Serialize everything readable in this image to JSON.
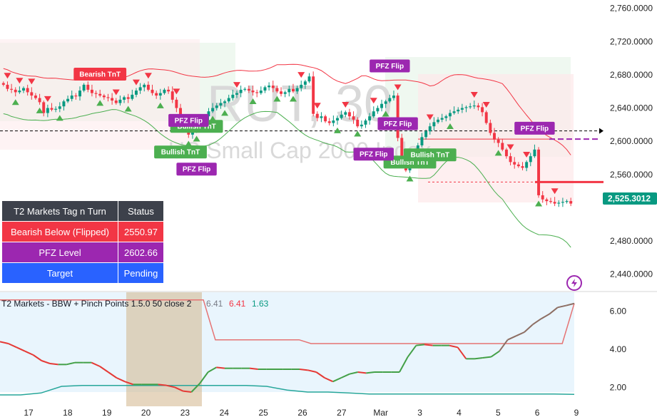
{
  "watermark": {
    "symbol": "RUT, 30",
    "name": "US Small Cap 2000 Index"
  },
  "price_axis": {
    "ticks": [
      "2,760.0000",
      "2,720.0000",
      "2,680.0000",
      "2,640.0000",
      "2,600.0000",
      "2,560.0000",
      "2,480.0000",
      "2,440.0000"
    ],
    "last_price": "2,525.3012",
    "last_price_color": "#089981"
  },
  "indicator_axis": {
    "ticks": [
      "6.00",
      "4.00",
      "2.00"
    ]
  },
  "time_axis": {
    "ticks": [
      "17",
      "18",
      "19",
      "20",
      "23",
      "24",
      "25",
      "26",
      "27",
      "Mar",
      "3",
      "4",
      "5",
      "6",
      "9"
    ]
  },
  "indicator": {
    "title": "T2 Markets - BBW + Pinch Points 1.5.0 50 close 2",
    "v1": "6.41",
    "v2": "6.41",
    "v3": "1.63"
  },
  "status_table": {
    "header": [
      "T2 Markets Tag n Turn",
      "Status"
    ],
    "rows": [
      {
        "label": "Bearish Below (Flipped)",
        "value": "2550.97",
        "color": "#f23645"
      },
      {
        "label": "PFZ Level",
        "value": "2602.66",
        "color": "#9c27b0"
      },
      {
        "label": "Target",
        "value": "Pending",
        "color": "#2962ff"
      }
    ]
  },
  "signals": {
    "bearish_tnt": "Bearish TnT",
    "bullish_tnt": "Bullish TnT",
    "pfz_flip": "PFZ Flip"
  },
  "colors": {
    "bull": "#089981",
    "bear": "#f23645",
    "band": "#f23645",
    "band_lower": "#4caf50",
    "pfz": "#9c27b0",
    "bull_label": "#4caf50",
    "bear_label": "#f23645",
    "ind_fill": "#e3f2fd",
    "pinch": "#d1b58a"
  },
  "chart_data": [
    {
      "type": "candlestick",
      "title": "RUT, 30 — US Small Cap 2000 Index",
      "ylim": [
        2420,
        2770
      ],
      "x_labels": [
        "17",
        "18",
        "19",
        "20",
        "23",
        "24",
        "25",
        "26",
        "27",
        "Mar",
        "3",
        "4",
        "5",
        "6",
        "9"
      ],
      "closes": [
        2668,
        2663,
        2662,
        2659,
        2661,
        2664,
        2659,
        2655,
        2652,
        2647,
        2634,
        2640,
        2638,
        2639,
        2642,
        2648,
        2651,
        2655,
        2654,
        2661,
        2668,
        2662,
        2658,
        2657,
        2655,
        2653,
        2652,
        2649,
        2646,
        2650,
        2653,
        2651,
        2656,
        2661,
        2665,
        2668,
        2662,
        2658,
        2655,
        2658,
        2662,
        2660,
        2650,
        2640,
        2630,
        2615,
        2608,
        2612,
        2618,
        2624,
        2630,
        2636,
        2640,
        2643,
        2646,
        2648,
        2652,
        2656,
        2658,
        2662,
        2663,
        2661,
        2659,
        2658,
        2661,
        2665,
        2667,
        2664,
        2660,
        2657,
        2659,
        2663,
        2660,
        2664,
        2668,
        2672,
        2678,
        2633,
        2628,
        2630,
        2624,
        2622,
        2625,
        2628,
        2632,
        2635,
        2630,
        2626,
        2618,
        2620,
        2625,
        2630,
        2636,
        2640,
        2645,
        2648,
        2652,
        2655,
        2604,
        2575,
        2565,
        2575,
        2585,
        2595,
        2605,
        2612,
        2618,
        2623,
        2626,
        2628,
        2630,
        2634,
        2636,
        2638,
        2640,
        2641,
        2642,
        2643,
        2641,
        2635,
        2622,
        2610,
        2602,
        2598,
        2590,
        2582,
        2575,
        2572,
        2570,
        2568,
        2575,
        2582,
        2590,
        2535,
        2530,
        2528,
        2527,
        2525,
        2526,
        2527,
        2528,
        2525
      ],
      "last_value": 2525.3,
      "levels": {
        "bearish_below_flipped": 2550.97,
        "pfz_level": 2602.66,
        "dashed_black": 2612.5
      },
      "annotations": [
        "Bearish TnT",
        "Bullish TnT",
        "Bullish TnT",
        "Bullish TnT",
        "Bullish TnT",
        "PFZ Flip",
        "PFZ Flip",
        "PFZ Flip",
        "PFZ Flip",
        "PFZ Flip",
        "PFZ Flip"
      ]
    },
    {
      "type": "line",
      "title": "T2 Markets - BBW + Pinch Points 1.5.0 50 close 2",
      "ylim": [
        1.0,
        7.0
      ],
      "series": [
        {
          "values": [
            4.4,
            4.3,
            4.1,
            3.9,
            3.7,
            3.4,
            3.25,
            3.2,
            3.2,
            3.3,
            3.3,
            3.3,
            3.1,
            2.8,
            2.5,
            2.3,
            2.15,
            2.15,
            2.15,
            2.15,
            2.1,
            2.0,
            1.8,
            1.75,
            2.2,
            2.8,
            3.05,
            3.0,
            3.0,
            3.0,
            3.0,
            2.95,
            2.95,
            2.95,
            2.95,
            2.95,
            2.95,
            2.9,
            2.8,
            2.5,
            2.3,
            2.5,
            2.7,
            2.8,
            2.75,
            2.8,
            2.8,
            2.8,
            2.8,
            3.6,
            4.2,
            4.25,
            4.2,
            4.2,
            4.2,
            4.1,
            3.5,
            3.5,
            3.55,
            3.6,
            3.9,
            4.5,
            4.7,
            4.9,
            5.3,
            5.6,
            5.85,
            6.2,
            6.3,
            6.41
          ]
        },
        {
          "values": [
            6.6,
            6.6,
            6.6,
            6.6,
            6.6,
            6.6,
            6.6,
            6.6,
            6.6,
            6.6,
            6.6,
            6.6,
            6.6,
            6.6,
            6.6,
            6.6,
            6.6,
            6.6,
            4.5,
            4.5,
            4.5,
            4.5,
            4.5,
            4.5,
            4.5,
            4.5,
            4.3,
            4.3,
            4.3,
            4.3,
            4.3,
            4.3,
            4.3,
            4.3,
            4.3,
            4.3,
            4.3,
            4.3,
            4.3,
            4.3,
            4.3,
            4.3,
            4.3,
            4.3,
            4.3,
            4.3,
            4.3,
            4.3,
            6.41
          ]
        },
        {
          "values": [
            1.6,
            1.6,
            1.7,
            2.05,
            2.1,
            2.1,
            2.1,
            2.1,
            2.1,
            2.1,
            2.1,
            2.1,
            2.1,
            2.05,
            1.85,
            1.75,
            1.75,
            1.7,
            1.65,
            1.65,
            1.65,
            1.65,
            1.65,
            1.65,
            1.65,
            1.65,
            1.65,
            1.65,
            1.63
          ]
        }
      ]
    }
  ]
}
